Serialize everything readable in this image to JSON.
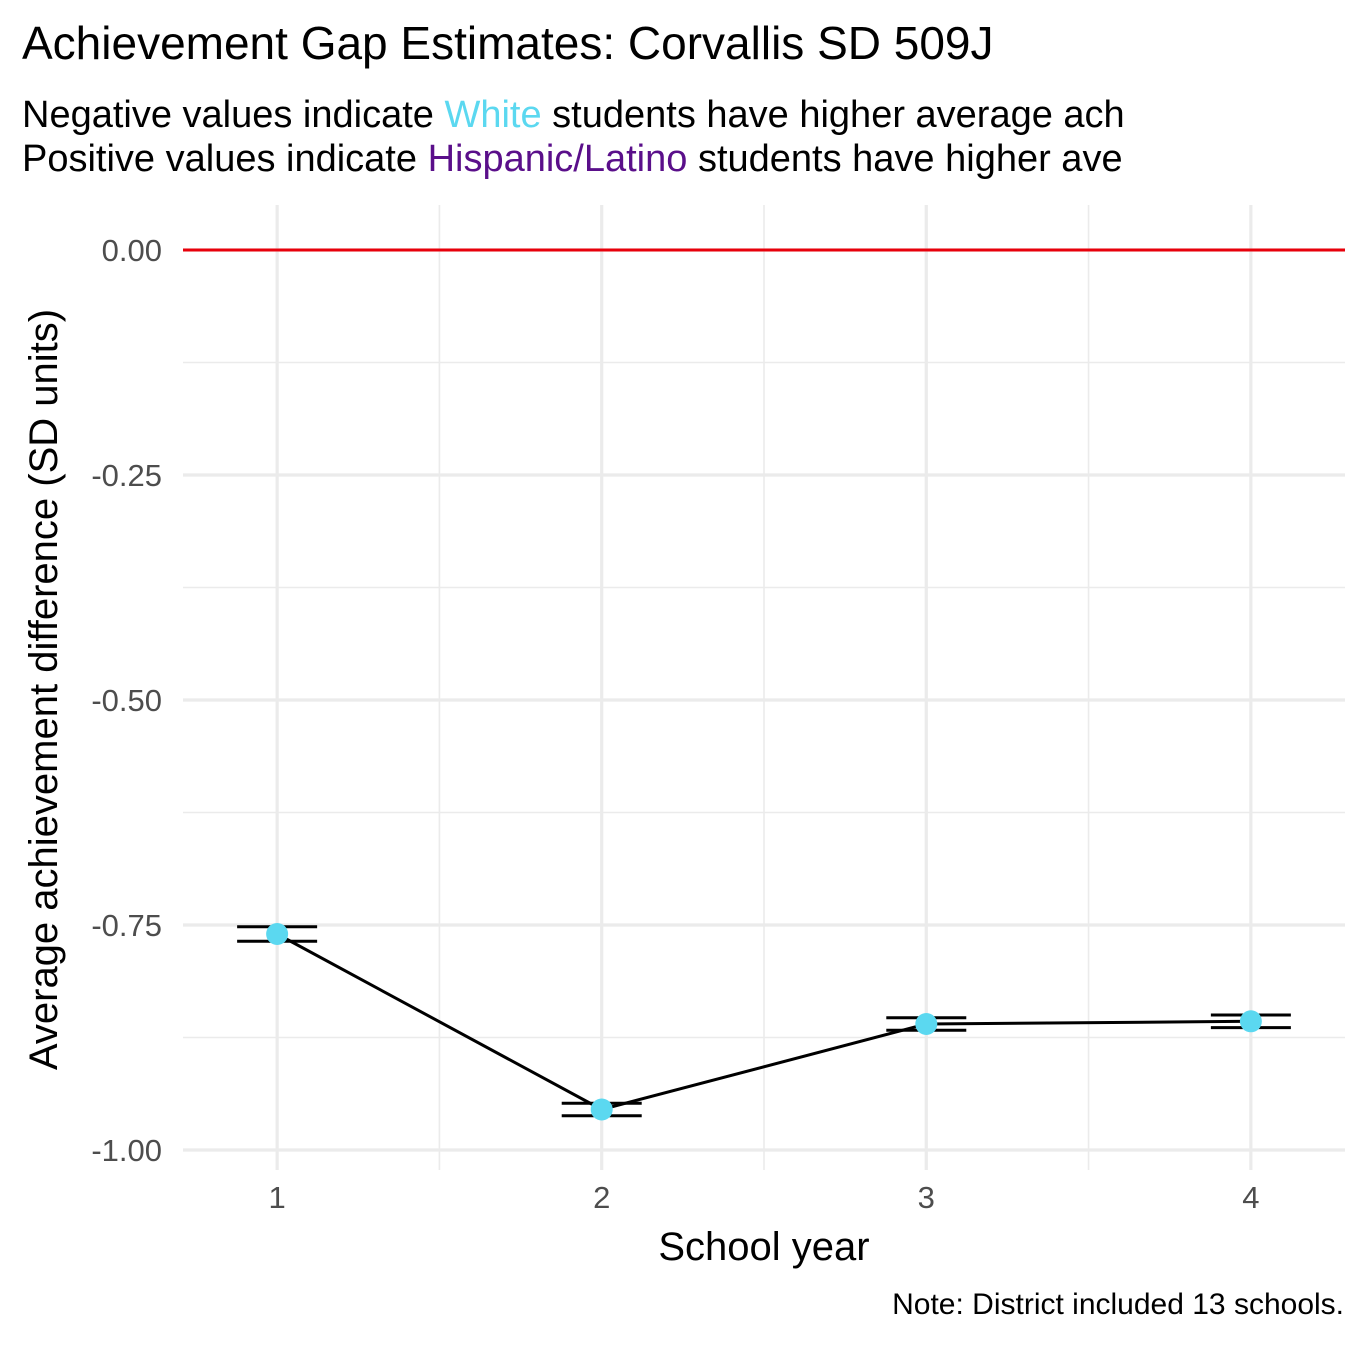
{
  "colors": {
    "white_group": "#5bd8f0",
    "latino_group": "#5a0f8a",
    "reference_line": "#e8000b",
    "point_fill": "#5bd8f0",
    "grid": "#ebebeb",
    "line": "#000000"
  },
  "subtitle": {
    "line1_prefix": "Negative values indicate ",
    "line1_group": "White",
    "line1_suffix": " students have higher average ach",
    "line2_prefix": "Positive values indicate ",
    "line2_group": "Hispanic/Latino",
    "line2_suffix": " students have higher ave"
  },
  "chart_data": {
    "type": "line",
    "title": "Achievement Gap Estimates: Corvallis SD 509J",
    "xlabel": "School year",
    "ylabel": "Average achievement difference (SD units)",
    "caption": "Note: District included 13 schools.",
    "x": [
      1,
      2,
      3,
      4
    ],
    "x_tick_labels": [
      "1",
      "2",
      "3",
      "4"
    ],
    "y_tick_labels": [
      "0.00",
      "-0.25",
      "-0.50",
      "-0.75",
      "-1.00"
    ],
    "y_ticks": [
      0,
      -0.25,
      -0.5,
      -0.75,
      -1.0
    ],
    "xlim": [
      0.71,
      4.29
    ],
    "ylim": [
      -1.0,
      0.0
    ],
    "reference_line_y": 0,
    "grid": true,
    "series": [
      {
        "values": [
          -0.76,
          -0.955,
          -0.86,
          -0.857
        ],
        "lower": [
          -0.768,
          -0.962,
          -0.867,
          -0.864
        ],
        "upper": [
          -0.752,
          -0.948,
          -0.853,
          -0.85
        ]
      }
    ]
  }
}
